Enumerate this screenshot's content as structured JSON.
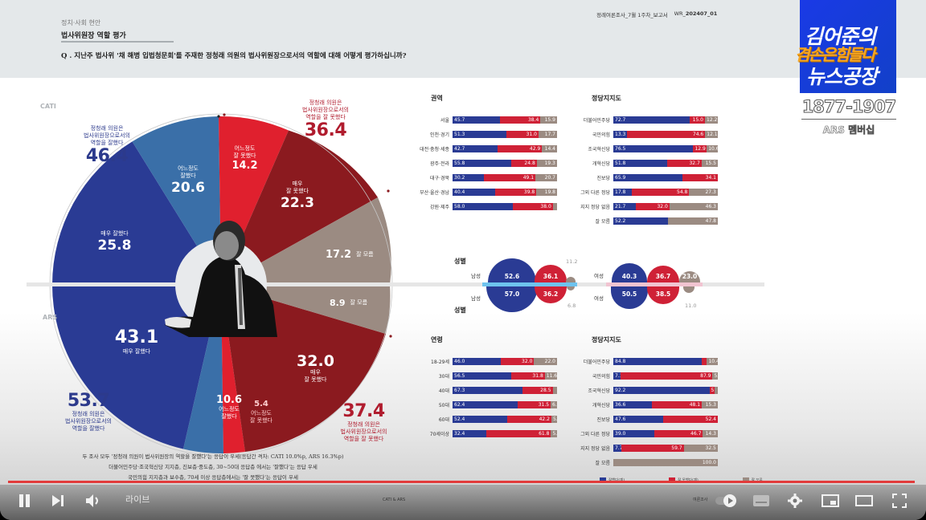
{
  "header": {
    "category": "정치·사회 현안",
    "subject": "법사위원장 역할 평가",
    "question": "Q . 지난주 법사위 '채 해병 입법청문회'를 주재한 정청래 의원의 법사위원장으로서의 역할에 대해 어떻게 평가하십니까?",
    "report_name": "정례여론조사_7월 1주차_보고서",
    "report_code_prefix": "WR_",
    "report_code": "202407_01"
  },
  "logo": {
    "line1": "김어준의",
    "line2": "겸손은힘들다",
    "line3": "뉴스공장",
    "phone": "1877-1907",
    "phone_sub": "ARS 멤버십"
  },
  "pie": {
    "cati_label": "CATI",
    "ars_label": "ARS",
    "cati_good_summary": {
      "text": "정청래 의원은\n법사위원장으로서의\n역할을 잘했다",
      "value": "46.4"
    },
    "cati_bad_summary": {
      "text": "정청래 의원은\n법사위원장으로서의\n역할을 잘 못했다",
      "value": "36.4"
    },
    "ars_good_summary": {
      "text": "정청래 의원은\n법사위원장으로서의\n역할을 잘했다",
      "value": "53.7"
    },
    "ars_bad_summary": {
      "text": "정청래 의원은\n법사위원장으로서의\n역할을 잘 못했다",
      "value": "37.4"
    },
    "cati_segments": [
      {
        "label": "매우 잘했다",
        "value": "25.8"
      },
      {
        "label": "어느정도\n잘했다",
        "value": "20.6"
      },
      {
        "label": "어느정도\n잘 못했다",
        "value": "14.2"
      },
      {
        "label": "매우\n잘 못했다",
        "value": "22.3"
      },
      {
        "label": "잘 모름",
        "value": "17.2"
      }
    ],
    "ars_segments": [
      {
        "label": "매우 잘했다",
        "value": "43.1"
      },
      {
        "label": "어느정도\n잘했다",
        "value": "10.6"
      },
      {
        "label": "어느정도\n잘 못했다",
        "value": "5.4"
      },
      {
        "label": "매우\n잘 못했다",
        "value": "32.0"
      },
      {
        "label": "잘 모름",
        "value": "8.9"
      }
    ]
  },
  "notes": [
    "두 조사 모두 '정청래 의원이 법사위원장의 역할을 잘했다'는 응답이 우세(응답간 격차: CATI 10.0%p, ARS 16.3%p)",
    "더불어민주당·조국혁신당 지지층, 진보층·중도층, 30~50대 응답층 에서는 '잘했다'는 응답 우세",
    "국민의힘 지지층과 보수층, 70세 이상 응답층에서는 '잘 못했다'는 응답이 우세"
  ],
  "chart_data": [
    {
      "type": "pie",
      "title": "CATI - 법사위원장 역할 평가",
      "categories": [
        "매우 잘했다",
        "어느정도 잘했다",
        "어느정도 잘 못했다",
        "매우 잘 못했다",
        "잘 모름"
      ],
      "values": [
        25.8,
        20.6,
        14.2,
        22.3,
        17.2
      ],
      "totals": {
        "잘했다": 46.4,
        "잘 못했다": 36.4
      }
    },
    {
      "type": "pie",
      "title": "ARS - 법사위원장 역할 평가",
      "categories": [
        "매우 잘했다",
        "어느정도 잘했다",
        "어느정도 잘 못했다",
        "매우 잘 못했다",
        "잘 모름"
      ],
      "values": [
        43.1,
        10.6,
        5.4,
        32.0,
        8.9
      ],
      "totals": {
        "잘했다": 53.7,
        "잘 못했다": 37.4
      }
    },
    {
      "type": "bar",
      "title": "권역 (CATI)",
      "stacked": true,
      "categories": [
        "서울",
        "인천·경기",
        "대전·충청·세종",
        "광주·전라",
        "대구·경북",
        "부산·울산·경남",
        "강원·제주"
      ],
      "series": [
        {
          "name": "잘했다",
          "values": [
            45.7,
            51.3,
            42.7,
            55.8,
            30.2,
            40.4,
            58.0
          ]
        },
        {
          "name": "잘 못했다",
          "values": [
            38.4,
            31.0,
            42.9,
            24.8,
            49.1,
            39.8,
            38.0
          ]
        },
        {
          "name": "잘 모름",
          "values": [
            15.9,
            17.7,
            14.4,
            19.3,
            20.7,
            19.8,
            4.0
          ]
        }
      ]
    },
    {
      "type": "bar",
      "title": "정당지지도 (CATI)",
      "stacked": true,
      "categories": [
        "더불어민주당",
        "국민의힘",
        "조국혁신당",
        "개혁신당",
        "진보당",
        "그외 다른 정당",
        "지지 정당 없음",
        "잘 모름"
      ],
      "series": [
        {
          "name": "잘했다",
          "values": [
            72.7,
            13.3,
            76.5,
            51.8,
            65.9,
            17.8,
            21.7,
            52.2
          ]
        },
        {
          "name": "잘 못했다",
          "values": [
            15.0,
            74.6,
            12.9,
            32.7,
            34.1,
            54.8,
            32.0,
            0
          ]
        },
        {
          "name": "잘 모름",
          "values": [
            12.2,
            12.1,
            10.6,
            15.5,
            0,
            27.3,
            46.3,
            47.8
          ]
        }
      ]
    },
    {
      "type": "bar",
      "title": "성별",
      "categories": [
        "남성 (CATI)",
        "남성 (ARS)",
        "여성 (CATI)",
        "여성 (ARS)"
      ],
      "series": [
        {
          "name": "잘했다",
          "values": [
            52.6,
            57.0,
            40.3,
            50.5
          ]
        },
        {
          "name": "잘 못했다",
          "values": [
            36.1,
            36.2,
            36.7,
            38.5
          ]
        },
        {
          "name": "잘 모름",
          "values": [
            11.2,
            6.8,
            23.0,
            11.0
          ]
        }
      ]
    },
    {
      "type": "bar",
      "title": "연령 (ARS)",
      "stacked": true,
      "categories": [
        "18-29세",
        "30대",
        "40대",
        "50대",
        "60대",
        "70세이상"
      ],
      "series": [
        {
          "name": "잘했다",
          "values": [
            46.0,
            56.5,
            67.3,
            62.4,
            52.4,
            32.4
          ]
        },
        {
          "name": "잘 못했다",
          "values": [
            32.0,
            31.8,
            28.5,
            31.5,
            42.2,
            61.8
          ]
        },
        {
          "name": "잘 모름",
          "values": [
            22.0,
            11.6,
            4.2,
            6.1,
            5.4,
            5.8
          ]
        }
      ]
    },
    {
      "type": "bar",
      "title": "정당지지도 (ARS)",
      "stacked": true,
      "categories": [
        "더불어민주당",
        "국민의힘",
        "조국혁신당",
        "개혁신당",
        "진보당",
        "그외 다른 정당",
        "지지 정당 없음",
        "잘 모름"
      ],
      "series": [
        {
          "name": "잘했다",
          "values": [
            84.8,
            7.1,
            92.2,
            36.6,
            47.6,
            39.0,
            7.7,
            0
          ]
        },
        {
          "name": "잘 못했다",
          "values": [
            4.8,
            87.9,
            5.0,
            48.1,
            52.4,
            46.7,
            59.7,
            0
          ]
        },
        {
          "name": "잘 모름",
          "values": [
            10.4,
            5.0,
            2.8,
            15.3,
            0,
            14.3,
            32.5,
            100.0
          ]
        }
      ]
    }
  ],
  "panels": {
    "region_title": "권역",
    "party_title": "정당지지도",
    "gender_title": "성별",
    "age_title": "연령",
    "party2_title": "정당지지도",
    "male_label": "남성",
    "female_label": "여성"
  },
  "legend": [
    "잘했다(계)",
    "잘 못했다(계)",
    "잘 모름"
  ],
  "colors": {
    "good_dark": "#2a3b94",
    "good_light": "#3a6fa8",
    "bad_light": "#e0202e",
    "bad_dark": "#8b1a1f",
    "unknown": "#9b8b82"
  },
  "player": {
    "live_label": "라이브",
    "chapter_left": "CATI & ARS",
    "chapter_right": "여론조사"
  }
}
